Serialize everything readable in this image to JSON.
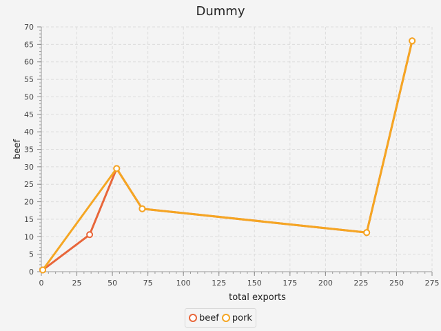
{
  "chart_data": {
    "type": "line",
    "title": "Dummy",
    "xlabel": "total exports",
    "ylabel": "beef",
    "xlim": [
      0,
      275
    ],
    "ylim": [
      0,
      70
    ],
    "x_ticks": [
      0,
      25,
      50,
      75,
      100,
      125,
      150,
      175,
      200,
      225,
      250,
      275
    ],
    "y_ticks": [
      0,
      5,
      10,
      15,
      20,
      25,
      30,
      35,
      40,
      45,
      50,
      55,
      60,
      65,
      70
    ],
    "grid": true,
    "legend_position": "bottom-center",
    "series": [
      {
        "name": "beef",
        "color": "#e8663a",
        "points": [
          [
            1,
            0.5
          ],
          [
            34,
            10.6
          ],
          [
            53,
            29.5
          ],
          [
            71,
            18
          ],
          [
            229,
            11.2
          ],
          [
            261,
            66
          ]
        ]
      },
      {
        "name": "pork",
        "color": "#f5a623",
        "points": [
          [
            1,
            0.5
          ],
          [
            53,
            29.5
          ],
          [
            71,
            18
          ],
          [
            229,
            11.2
          ],
          [
            261,
            66
          ]
        ]
      }
    ]
  }
}
